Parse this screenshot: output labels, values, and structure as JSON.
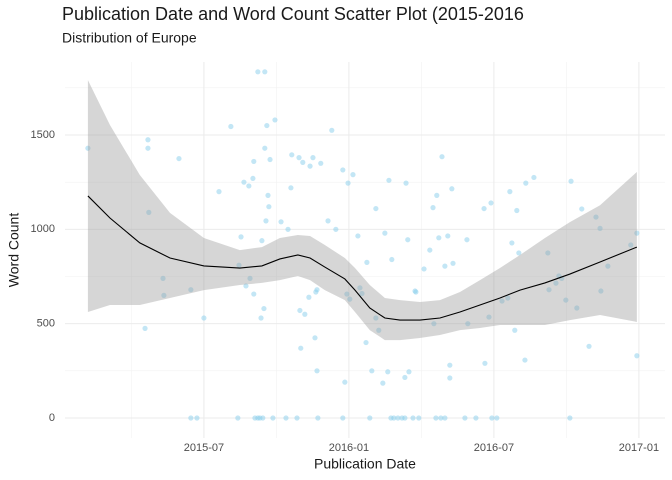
{
  "chart_data": {
    "type": "scatter",
    "title": "Publication Date and Word Count Scatter Plot (2015-2016",
    "subtitle": "Distribution of Europe",
    "x_label": "Publication Date",
    "y_label": "Word Count",
    "color": "#87ceeb",
    "grid": true,
    "xlim": [
      2015.021,
      2017.09
    ],
    "ylim": [
      -106,
      1887
    ],
    "xticks": [
      {
        "value": 2015.5,
        "label": "2015-07"
      },
      {
        "value": 2016,
        "label": "2016-01"
      },
      {
        "value": 2016.5,
        "label": "2016-07"
      },
      {
        "value": 2017,
        "label": "2017-01"
      }
    ],
    "yticks": [
      0,
      500,
      1000,
      1500
    ],
    "x": [
      2015.1,
      2015.297,
      2015.307,
      2015.307,
      2015.31,
      2015.359,
      2015.362,
      2015.414,
      2015.455,
      2015.455,
      2015.476,
      2015.5,
      2015.552,
      2015.593,
      2015.617,
      2015.621,
      2015.628,
      2015.638,
      2015.645,
      2015.655,
      2015.659,
      2015.669,
      2015.672,
      2015.672,
      2015.676,
      2015.686,
      2015.693,
      2015.703,
      2015.686,
      2015.71,
      2015.697,
      2015.7,
      2015.707,
      2015.71,
      2015.714,
      2015.717,
      2015.721,
      2015.724,
      2015.728,
      2015.745,
      2015.738,
      2015.766,
      2015.783,
      2015.79,
      2015.8,
      2015.803,
      2015.821,
      2015.828,
      2015.831,
      2015.834,
      2015.841,
      2015.848,
      2015.862,
      2015.866,
      2015.876,
      2015.883,
      2015.886,
      2015.89,
      2015.89,
      2015.893,
      2015.903,
      2015.928,
      2015.941,
      2015.955,
      2015.979,
      2015.979,
      2015.986,
      2015.993,
      2015.997,
      2016.003,
      2016.014,
      2016.031,
      2016.038,
      2016.045,
      2016.059,
      2016.062,
      2016.072,
      2016.079,
      2016.093,
      2016.093,
      2016.103,
      2016.117,
      2016.124,
      2016.134,
      2016.145,
      2016.155,
      2016.169,
      2016.183,
      2016.193,
      2016.138,
      2016.148,
      2016.193,
      2016.197,
      2016.207,
      2016.203,
      2016.221,
      2016.228,
      2016.231,
      2016.241,
      2016.259,
      2016.279,
      2016.29,
      2016.293,
      2016.3,
      2016.303,
      2016.31,
      2016.317,
      2016.321,
      2016.331,
      2016.331,
      2016.341,
      2016.348,
      2016.348,
      2016.355,
      2016.359,
      2016.4,
      2016.407,
      2016.41,
      2016.438,
      2016.466,
      2016.469,
      2016.483,
      2016.49,
      2016.493,
      2016.51,
      2016.528,
      2016.548,
      2016.555,
      2016.562,
      2016.572,
      2016.579,
      2016.586,
      2016.607,
      2016.61,
      2016.638,
      2016.686,
      2016.69,
      2016.714,
      2016.724,
      2016.734,
      2016.748,
      2016.762,
      2016.766,
      2016.786,
      2016.803,
      2016.828,
      2016.852,
      2016.866,
      2016.869,
      2016.893,
      2016.972,
      2016.993,
      2016.993
    ],
    "values": [
      1430,
      475,
      1475,
      1430,
      1090,
      740,
      650,
      1375,
      680,
      0,
      0,
      530,
      1200,
      1545,
      0,
      810,
      960,
      1250,
      700,
      1230,
      740,
      1270,
      1360,
      657,
      0,
      0,
      0,
      0,
      1835,
      1835,
      530,
      940,
      580,
      1430,
      1045,
      1550,
      1180,
      1120,
      1370,
      1580,
      0,
      1040,
      0,
      1000,
      1220,
      1395,
      0,
      1380,
      570,
      370,
      1355,
      550,
      640,
      1335,
      1380,
      425,
      668,
      680,
      250,
      0,
      1350,
      1045,
      1525,
      1000,
      0,
      1315,
      190,
      657,
      1245,
      630,
      1290,
      965,
      690,
      660,
      400,
      825,
      0,
      250,
      1110,
      530,
      465,
      185,
      980,
      245,
      0,
      0,
      0,
      0,
      0,
      1260,
      840,
      215,
      1245,
      245,
      945,
      0,
      673,
      668,
      0,
      790,
      890,
      1115,
      500,
      0,
      1180,
      955,
      0,
      1385,
      805,
      0,
      965,
      280,
      212,
      1215,
      820,
      0,
      945,
      500,
      0,
      1110,
      290,
      535,
      1140,
      0,
      0,
      620,
      636,
      1200,
      928,
      465,
      1100,
      875,
      307,
      1245,
      1275,
      875,
      680,
      715,
      753,
      740,
      625,
      0,
      1255,
      583,
      1108,
      380,
      1065,
      1005,
      673,
      805,
      917,
      980,
      330
    ],
    "smooth": {
      "color": "#000000",
      "band_color": "#999999",
      "x": [
        2015.1,
        2015.176,
        2015.279,
        2015.383,
        2015.5,
        2015.624,
        2015.7,
        2015.762,
        2015.824,
        2015.866,
        2015.917,
        2015.986,
        2016.021,
        2016.072,
        2016.124,
        2016.176,
        2016.245,
        2016.314,
        2016.383,
        2016.452,
        2016.521,
        2016.59,
        2016.676,
        2016.762,
        2016.866,
        2016.993
      ],
      "values": [
        1177,
        1060,
        928,
        848,
        806,
        795,
        806,
        843,
        864,
        848,
        800,
        737,
        678,
        583,
        530,
        519,
        519,
        530,
        562,
        599,
        636,
        678,
        716,
        763,
        827,
        906
      ],
      "upper": [
        1791,
        1553,
        1288,
        1087,
        954,
        890,
        906,
        954,
        970,
        965,
        917,
        848,
        795,
        705,
        636,
        625,
        615,
        625,
        668,
        731,
        795,
        864,
        954,
        1038,
        1128,
        1304
      ],
      "lower": [
        562,
        599,
        599,
        636,
        678,
        705,
        716,
        731,
        753,
        731,
        678,
        625,
        562,
        466,
        413,
        413,
        424,
        440,
        466,
        477,
        493,
        493,
        493,
        519,
        546,
        509
      ]
    }
  }
}
